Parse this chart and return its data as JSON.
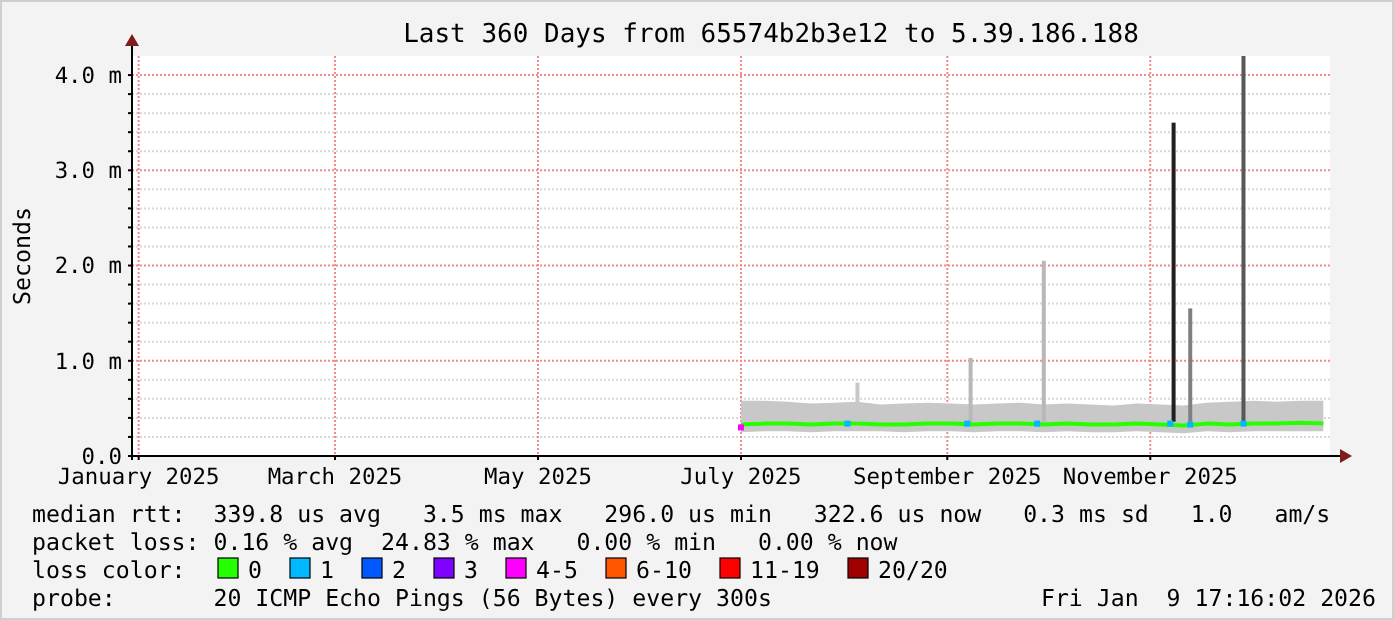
{
  "chart_data": {
    "type": "line",
    "title": "Last 360 Days from 65574b2b3e12 to 5.39.186.188",
    "ylabel": "Seconds",
    "xlim": [
      "2025-01-14",
      "2026-01-09"
    ],
    "xticks": [
      {
        "value": "2025-01-16",
        "label": "January 2025"
      },
      {
        "value": "2025-03-16",
        "label": "March 2025"
      },
      {
        "value": "2025-05-16",
        "label": "May 2025"
      },
      {
        "value": "2025-07-16",
        "label": "July 2025"
      },
      {
        "value": "2025-09-16",
        "label": "September 2025"
      },
      {
        "value": "2025-11-16",
        "label": "November 2025"
      }
    ],
    "ylim": [
      0,
      4.2
    ],
    "yticks": [
      {
        "value": 0,
        "label": "0.0"
      },
      {
        "value": 0.2,
        "label": null
      },
      {
        "value": 0.4,
        "label": null
      },
      {
        "value": 0.6,
        "label": null
      },
      {
        "value": 0.8,
        "label": null
      },
      {
        "value": 1,
        "label": "1.0 m"
      },
      {
        "value": 1.2,
        "label": null
      },
      {
        "value": 1.4,
        "label": null
      },
      {
        "value": 1.6,
        "label": null
      },
      {
        "value": 1.8,
        "label": null
      },
      {
        "value": 2,
        "label": "2.0 m"
      },
      {
        "value": 2.2,
        "label": null
      },
      {
        "value": 2.4,
        "label": null
      },
      {
        "value": 2.6,
        "label": null
      },
      {
        "value": 2.8,
        "label": null
      },
      {
        "value": 3,
        "label": "3.0 m"
      },
      {
        "value": 3.2,
        "label": null
      },
      {
        "value": 3.4,
        "label": null
      },
      {
        "value": 3.6,
        "label": null
      },
      {
        "value": 3.8,
        "label": null
      },
      {
        "value": 4,
        "label": "4.0 m"
      }
    ],
    "grid": true,
    "legend": "bottom",
    "legend_title": "loss color:",
    "series": [
      {
        "name": "0",
        "color": "#26ff00",
        "x": [
          "2025-07-16",
          "2025-07-23",
          "2025-07-30",
          "2025-08-06",
          "2025-08-13",
          "2025-08-20",
          "2025-08-27",
          "2025-09-03",
          "2025-09-10",
          "2025-09-17",
          "2025-09-24",
          "2025-10-01",
          "2025-10-08",
          "2025-10-15",
          "2025-10-22",
          "2025-10-29",
          "2025-11-05",
          "2025-11-12",
          "2025-11-19",
          "2025-11-26",
          "2025-12-03",
          "2025-12-10",
          "2025-12-17",
          "2025-12-24",
          "2025-12-31",
          "2026-01-07"
        ],
        "values": [
          0.33,
          0.34,
          0.34,
          0.33,
          0.34,
          0.34,
          0.33,
          0.33,
          0.34,
          0.34,
          0.33,
          0.34,
          0.34,
          0.33,
          0.34,
          0.33,
          0.33,
          0.34,
          0.33,
          0.32,
          0.34,
          0.33,
          0.34,
          0.34,
          0.35,
          0.34
        ],
        "lower": [
          0.25,
          0.26,
          0.26,
          0.25,
          0.26,
          0.26,
          0.26,
          0.25,
          0.26,
          0.26,
          0.25,
          0.26,
          0.26,
          0.25,
          0.26,
          0.25,
          0.25,
          0.26,
          0.25,
          0.24,
          0.26,
          0.25,
          0.26,
          0.26,
          0.26,
          0.26
        ],
        "upper": [
          0.58,
          0.58,
          0.57,
          0.55,
          0.56,
          0.57,
          0.54,
          0.55,
          0.56,
          0.55,
          0.54,
          0.55,
          0.56,
          0.54,
          0.55,
          0.54,
          0.53,
          0.55,
          0.54,
          0.53,
          0.56,
          0.57,
          0.58,
          0.57,
          0.58,
          0.58
        ]
      },
      {
        "name": "1",
        "type": "scatter",
        "color": "#00b8ff",
        "x": [
          "2025-08-17",
          "2025-09-22",
          "2025-10-13",
          "2025-11-22",
          "2025-11-28",
          "2025-12-14"
        ],
        "values": [
          0.34,
          0.34,
          0.34,
          0.34,
          0.33,
          0.34
        ]
      },
      {
        "name": "2",
        "type": "scatter",
        "color": "#0059ff"
      },
      {
        "name": "3",
        "type": "scatter",
        "color": "#7e00ff"
      },
      {
        "name": "4-5",
        "type": "scatter",
        "color": "#ff00ff",
        "x": [
          "2025-07-16"
        ],
        "values": [
          0.3
        ]
      },
      {
        "name": "6-10",
        "type": "scatter",
        "color": "#ff5500"
      },
      {
        "name": "11-19",
        "type": "scatter",
        "color": "#ff0000"
      },
      {
        "name": "20/20",
        "type": "scatter",
        "color": "#a10000"
      },
      {
        "type": "bar",
        "x": [
          "2025-08-20",
          "2025-09-23",
          "2025-10-15",
          "2025-11-23",
          "2025-11-28",
          "2025-12-14"
        ],
        "base": [
          0.36,
          0.36,
          0.36,
          0.36,
          0.36,
          0.36
        ],
        "values": [
          0.41,
          0.67,
          1.69,
          3.14,
          1.19,
          3.84
        ],
        "colors": [
          "#c8c8c8",
          "#b8b8b8",
          "#b8b8b8",
          "#202020",
          "#808080",
          "#585858"
        ]
      }
    ],
    "annotations": [
      "median rtt:  339.8 us avg   3.5 ms max   296.0 us min   322.6 us now   0.3 ms sd   1.0   am/s",
      "packet loss: 0.16 % avg  24.83 % max   0.00 % min   0.00 % now",
      "probe:       20 ICMP Echo Pings (56 Bytes) every 300s",
      "Fri Jan  9 17:16:02 2026"
    ]
  }
}
